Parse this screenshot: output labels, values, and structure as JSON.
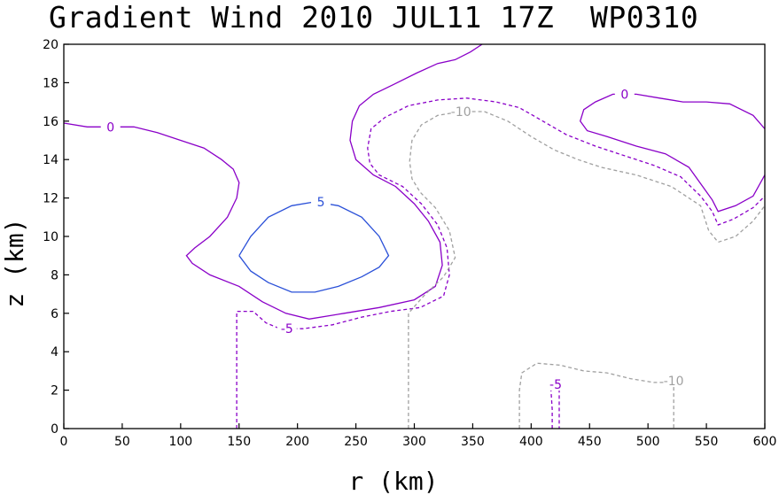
{
  "title": "Gradient Wind 2010 JUL11 17Z  WP0310",
  "chart_data": {
    "type": "contour",
    "xlabel": "r (km)",
    "ylabel": "z (km)",
    "xlim": [
      0,
      600
    ],
    "ylim": [
      0,
      20
    ],
    "xticks": [
      0,
      50,
      100,
      150,
      200,
      250,
      300,
      350,
      400,
      450,
      500,
      550,
      600
    ],
    "yticks": [
      0,
      2,
      4,
      6,
      8,
      10,
      12,
      14,
      16,
      18,
      20
    ],
    "grid": false,
    "colors": {
      "zero": "#8a00c8",
      "minus5": "#8a00c8",
      "minus10": "#a0a0a0",
      "plus5": "#2a50d8"
    },
    "contours": [
      {
        "name": "zero-upper",
        "level": "0",
        "color": "zero",
        "dash": false,
        "points": [
          [
            0,
            15.9
          ],
          [
            20,
            15.7
          ],
          [
            40,
            15.7
          ],
          [
            60,
            15.7
          ],
          [
            80,
            15.4
          ],
          [
            100,
            15.0
          ],
          [
            120,
            14.6
          ],
          [
            135,
            14.0
          ],
          [
            145,
            13.5
          ],
          [
            150,
            12.8
          ],
          [
            148,
            12.0
          ],
          [
            140,
            11.0
          ],
          [
            125,
            10.0
          ],
          [
            112,
            9.4
          ],
          [
            105,
            9.0
          ],
          [
            110,
            8.6
          ],
          [
            125,
            8.0
          ],
          [
            150,
            7.4
          ],
          [
            170,
            6.6
          ],
          [
            190,
            6.0
          ],
          [
            210,
            5.7
          ],
          [
            240,
            6.0
          ],
          [
            270,
            6.3
          ],
          [
            300,
            6.7
          ],
          [
            318,
            7.4
          ],
          [
            324,
            8.5
          ],
          [
            322,
            9.7
          ],
          [
            312,
            10.8
          ],
          [
            300,
            11.7
          ],
          [
            284,
            12.6
          ],
          [
            265,
            13.2
          ],
          [
            250,
            14.0
          ],
          [
            245,
            15.0
          ],
          [
            247,
            16.0
          ],
          [
            253,
            16.8
          ],
          [
            265,
            17.4
          ],
          [
            282,
            17.9
          ],
          [
            302,
            18.5
          ],
          [
            320,
            19.0
          ],
          [
            335,
            19.2
          ],
          [
            348,
            19.6
          ],
          [
            358,
            20.0
          ]
        ],
        "label_at": [
          40,
          15.7
        ]
      },
      {
        "name": "zero-right",
        "level": "0",
        "color": "zero",
        "dash": false,
        "points": [
          [
            600,
            15.6
          ],
          [
            590,
            16.3
          ],
          [
            570,
            16.9
          ],
          [
            550,
            17.0
          ],
          [
            530,
            17.0
          ],
          [
            510,
            17.2
          ],
          [
            490,
            17.4
          ],
          [
            470,
            17.4
          ],
          [
            455,
            17.0
          ],
          [
            445,
            16.6
          ],
          [
            442,
            16.0
          ],
          [
            448,
            15.5
          ],
          [
            465,
            15.2
          ],
          [
            490,
            14.7
          ],
          [
            515,
            14.3
          ],
          [
            535,
            13.6
          ],
          [
            548,
            12.5
          ],
          [
            555,
            11.9
          ],
          [
            560,
            11.3
          ],
          [
            575,
            11.6
          ],
          [
            590,
            12.1
          ],
          [
            600,
            13.2
          ]
        ],
        "label_at": [
          480,
          17.4
        ]
      },
      {
        "name": "minus5-mid",
        "level": "-5",
        "color": "minus5",
        "dash": true,
        "points": [
          [
            148,
            0
          ],
          [
            148,
            1
          ],
          [
            148,
            3
          ],
          [
            148,
            5
          ],
          [
            148,
            6.1
          ],
          [
            162,
            6.1
          ],
          [
            173,
            5.5
          ],
          [
            185,
            5.2
          ],
          [
            205,
            5.2
          ],
          [
            230,
            5.4
          ],
          [
            255,
            5.8
          ],
          [
            280,
            6.1
          ],
          [
            305,
            6.3
          ],
          [
            325,
            6.9
          ],
          [
            330,
            8.0
          ],
          [
            328,
            9.4
          ],
          [
            320,
            10.6
          ],
          [
            306,
            11.7
          ],
          [
            290,
            12.6
          ],
          [
            270,
            13.2
          ],
          [
            262,
            13.8
          ],
          [
            260,
            14.6
          ],
          [
            263,
            15.6
          ],
          [
            275,
            16.2
          ],
          [
            295,
            16.8
          ],
          [
            320,
            17.1
          ],
          [
            345,
            17.2
          ],
          [
            370,
            17.0
          ],
          [
            390,
            16.7
          ],
          [
            410,
            16.0
          ],
          [
            430,
            15.3
          ],
          [
            455,
            14.7
          ],
          [
            480,
            14.2
          ],
          [
            505,
            13.7
          ],
          [
            528,
            13.1
          ],
          [
            545,
            12.1
          ],
          [
            555,
            11.3
          ],
          [
            560,
            10.6
          ],
          [
            573,
            10.9
          ],
          [
            590,
            11.5
          ],
          [
            600,
            12.1
          ]
        ],
        "label_at": [
          191,
          5.2
        ]
      },
      {
        "name": "minus10-mid",
        "level": "-10",
        "color": "minus10",
        "dash": true,
        "points": [
          [
            295,
            0
          ],
          [
            295,
            2
          ],
          [
            295,
            4
          ],
          [
            295,
            6
          ],
          [
            308,
            6.9
          ],
          [
            325,
            7.9
          ],
          [
            335,
            8.9
          ],
          [
            330,
            10.3
          ],
          [
            318,
            11.5
          ],
          [
            305,
            12.3
          ],
          [
            298,
            13.0
          ],
          [
            296,
            13.9
          ],
          [
            298,
            15.0
          ],
          [
            306,
            15.8
          ],
          [
            320,
            16.3
          ],
          [
            340,
            16.5
          ],
          [
            360,
            16.5
          ],
          [
            380,
            16.0
          ],
          [
            400,
            15.2
          ],
          [
            420,
            14.5
          ],
          [
            440,
            14.0
          ],
          [
            460,
            13.6
          ],
          [
            490,
            13.2
          ],
          [
            520,
            12.6
          ],
          [
            545,
            11.6
          ],
          [
            552,
            10.3
          ],
          [
            560,
            9.7
          ],
          [
            575,
            10.0
          ],
          [
            590,
            10.8
          ],
          [
            600,
            11.6
          ]
        ],
        "label_at": [
          340,
          16.5
        ]
      },
      {
        "name": "minus10-bottom",
        "level": "-10",
        "color": "minus10",
        "dash": true,
        "points": [
          [
            390,
            0
          ],
          [
            390,
            1
          ],
          [
            390,
            2
          ],
          [
            392,
            2.9
          ],
          [
            405,
            3.4
          ],
          [
            425,
            3.3
          ],
          [
            445,
            3.0
          ],
          [
            465,
            2.9
          ],
          [
            485,
            2.6
          ],
          [
            505,
            2.4
          ],
          [
            522,
            2.4
          ],
          [
            522,
            1.5
          ],
          [
            522,
            0
          ]
        ],
        "label_at": [
          522,
          2.5
        ]
      },
      {
        "name": "minus5-bottom",
        "level": "-5",
        "color": "minus5",
        "dash": true,
        "points": [
          [
            418,
            0
          ],
          [
            418,
            1
          ],
          [
            417,
            2
          ],
          [
            421,
            2.6
          ],
          [
            424,
            2.1
          ],
          [
            424,
            1
          ],
          [
            424,
            0
          ]
        ],
        "label_at": [
          421,
          2.3
        ]
      },
      {
        "name": "plus5-core",
        "level": "5",
        "color": "plus5",
        "dash": false,
        "points": [
          [
            150,
            9.0
          ],
          [
            160,
            10.0
          ],
          [
            175,
            11.0
          ],
          [
            195,
            11.6
          ],
          [
            215,
            11.8
          ],
          [
            235,
            11.6
          ],
          [
            255,
            11.0
          ],
          [
            270,
            10.0
          ],
          [
            278,
            9.0
          ],
          [
            270,
            8.4
          ],
          [
            255,
            7.9
          ],
          [
            235,
            7.4
          ],
          [
            215,
            7.1
          ],
          [
            195,
            7.1
          ],
          [
            175,
            7.6
          ],
          [
            160,
            8.2
          ],
          [
            150,
            9.0
          ]
        ],
        "label_at": [
          220,
          11.8
        ]
      }
    ]
  }
}
